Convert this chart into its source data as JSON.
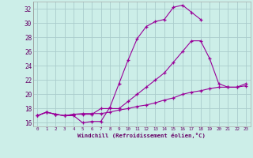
{
  "xlabel": "Windchill (Refroidissement éolien,°C)",
  "bg_color": "#cceee8",
  "grid_color": "#aacccc",
  "line_color": "#990099",
  "xlim": [
    -0.5,
    23.5
  ],
  "ylim": [
    15.5,
    33.0
  ],
  "yticks": [
    16,
    18,
    20,
    22,
    24,
    26,
    28,
    30,
    32
  ],
  "xticks": [
    0,
    1,
    2,
    3,
    4,
    5,
    6,
    7,
    8,
    9,
    10,
    11,
    12,
    13,
    14,
    15,
    16,
    17,
    18,
    19,
    20,
    21,
    22,
    23
  ],
  "line1_x": [
    0,
    1,
    2,
    3,
    4,
    5,
    6,
    7,
    8,
    9,
    10,
    11,
    12,
    13,
    14,
    15,
    16,
    17,
    18
  ],
  "line1_y": [
    17.0,
    17.5,
    17.2,
    17.0,
    17.0,
    16.0,
    16.2,
    16.2,
    18.2,
    21.5,
    24.8,
    27.8,
    29.5,
    30.2,
    30.5,
    32.2,
    32.5,
    31.5,
    30.5
  ],
  "line2_x": [
    0,
    1,
    2,
    3,
    4,
    5,
    6,
    7,
    8,
    9,
    10,
    11,
    12,
    13,
    14,
    15,
    16,
    17,
    18,
    19,
    20,
    21,
    22,
    23
  ],
  "line2_y": [
    17.0,
    17.5,
    17.2,
    17.0,
    17.2,
    17.2,
    17.2,
    18.0,
    18.0,
    18.0,
    19.0,
    20.0,
    21.0,
    22.0,
    23.0,
    24.5,
    26.0,
    27.5,
    27.5,
    25.0,
    21.5,
    21.0,
    21.0,
    21.5
  ],
  "line3_x": [
    0,
    1,
    2,
    3,
    4,
    5,
    6,
    7,
    8,
    9,
    10,
    11,
    12,
    13,
    14,
    15,
    16,
    17,
    18,
    19,
    20,
    21,
    22,
    23
  ],
  "line3_y": [
    17.0,
    17.5,
    17.2,
    17.0,
    17.2,
    17.3,
    17.3,
    17.3,
    17.5,
    17.8,
    18.0,
    18.3,
    18.5,
    18.8,
    19.2,
    19.5,
    20.0,
    20.3,
    20.5,
    20.8,
    21.0,
    21.0,
    21.0,
    21.2
  ]
}
